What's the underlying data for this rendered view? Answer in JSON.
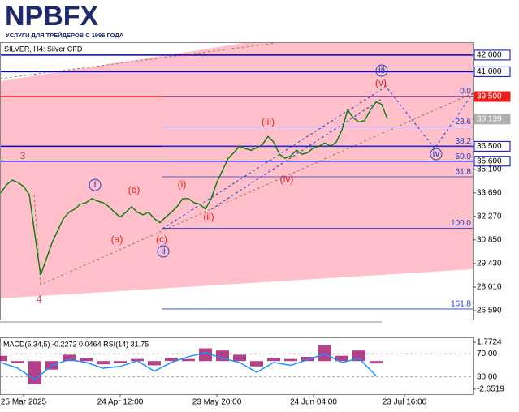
{
  "logo": {
    "name": "NPBFX",
    "tagline": "УСЛУГИ ДЛЯ ТРЕЙДЕРОВ С 1996 ГОДА"
  },
  "chart_data": [
    {
      "type": "line",
      "title": "SILVER, H4:  Silver CFD",
      "color": "#0a7a0a",
      "values": [
        33.69,
        34.17,
        34.46,
        34.32,
        34.08,
        33.59,
        31.16,
        28.73,
        29.7,
        30.67,
        31.4,
        32.13,
        32.52,
        32.71,
        33.01,
        33.1,
        33.35,
        33.2,
        33.1,
        32.86,
        32.52,
        32.23,
        32.52,
        32.86,
        32.52,
        32.37,
        32.52,
        32.13,
        31.89,
        32.23,
        32.52,
        32.86,
        33.35,
        33.35,
        33.1,
        33.01,
        32.71,
        33.35,
        34.32,
        35.05,
        35.78,
        36.12,
        36.51,
        36.36,
        36.26,
        36.41,
        36.6,
        37.09,
        36.75,
        36.02,
        35.78,
        35.92,
        36.26,
        36.02,
        36.12,
        36.41,
        36.51,
        36.7,
        36.51,
        36.75,
        37.48,
        38.69,
        38.21,
        37.96,
        38.06,
        38.69,
        39.18,
        39.03,
        38.14
      ],
      "xlim": [
        0,
        83
      ],
      "ylim": [
        26.05,
        42.73
      ],
      "yticks": [
        {
          "value": 42.0,
          "label": "42.000",
          "box": "#0000cc"
        },
        {
          "value": 41.0,
          "label": "41.000",
          "box": "#0000cc"
        },
        {
          "value": 39.5,
          "label": "39.500",
          "box": "#e8201c"
        },
        {
          "value": 38.139,
          "label": "38.139",
          "box": "#b0b0b0"
        },
        {
          "value": 36.5,
          "label": "36.500",
          "box": "#0000cc"
        },
        {
          "value": 35.6,
          "label": "35.600",
          "box": "#0000cc"
        },
        {
          "value": 35.1,
          "label": "35.100"
        },
        {
          "value": 33.69,
          "label": "33.690"
        },
        {
          "value": 32.27,
          "label": "32.270"
        },
        {
          "value": 30.85,
          "label": "30.850"
        },
        {
          "value": 29.43,
          "label": "29.430"
        },
        {
          "value": 28.01,
          "label": "28.010"
        },
        {
          "value": 26.59,
          "label": "26.590"
        }
      ],
      "levels": [
        {
          "value": 42.0,
          "color": "#0000cc"
        },
        {
          "value": 41.0,
          "color": "#0000cc"
        },
        {
          "value": 39.5,
          "color": "#e8201c"
        },
        {
          "value": 36.5,
          "color": "#0000cc"
        },
        {
          "value": 35.6,
          "color": "#0000cc"
        }
      ],
      "fibonacci": [
        {
          "value": 39.5,
          "label": "0.0"
        },
        {
          "value": 37.67,
          "label": "23.6"
        },
        {
          "value": 36.5,
          "label": "38.2"
        },
        {
          "value": 35.58,
          "label": "50.0"
        },
        {
          "value": 34.66,
          "label": "61.8"
        },
        {
          "value": 31.55,
          "label": "100.0"
        },
        {
          "value": 26.69,
          "label": "161.8"
        }
      ],
      "annotations": [
        {
          "text": "3",
          "color": "#c0504d"
        },
        {
          "text": "4",
          "color": "#c0504d"
        },
        {
          "text": "i",
          "color": "#1c3fc8"
        },
        {
          "text": "(a)",
          "color": "#e8201c"
        },
        {
          "text": "(b)",
          "color": "#e8201c"
        },
        {
          "text": "(c)",
          "color": "#e8201c"
        },
        {
          "text": "ii",
          "color": "#1c3fc8"
        },
        {
          "text": "(i)",
          "color": "#e8201c"
        },
        {
          "text": "(ii)",
          "color": "#e8201c"
        },
        {
          "text": "(iii)",
          "color": "#e8201c"
        },
        {
          "text": "(iv)",
          "color": "#e8201c"
        },
        {
          "text": "iii",
          "color": "#1c3fc8"
        },
        {
          "text": "(v)",
          "color": "#e8201c"
        },
        {
          "text": "iv",
          "color": "#1c3fc8"
        }
      ]
    },
    {
      "type": "macd_rsi",
      "title": "MACD(5,34,5) -0.2272 0.0464 RSI(14) 31.75",
      "x": [
        0,
        3,
        6,
        9,
        12,
        15,
        18,
        21,
        24,
        27,
        30,
        33,
        36,
        39,
        42,
        45,
        48,
        51,
        54,
        57,
        60,
        63,
        66
      ],
      "series": [
        {
          "color": "#a0106a",
          "values": [
            0.5,
            -0.2,
            -2.2,
            -0.8,
            0.6,
            0.3,
            -0.3,
            -0.2,
            0.2,
            -0.4,
            0.3,
            0.2,
            1.2,
            1.0,
            0.6,
            -0.5,
            0.3,
            0.2,
            0.4,
            1.5,
            0.5,
            1.0,
            -0.2272
          ]
        },
        {
          "color": "#1e90ff",
          "axis": "y2",
          "values": [
            55,
            45,
            25,
            50,
            60,
            55,
            45,
            48,
            58,
            40,
            55,
            65,
            72,
            62,
            55,
            38,
            55,
            50,
            60,
            70,
            55,
            62,
            31.75
          ]
        }
      ],
      "xlim": [
        0,
        83
      ],
      "ylim": [
        -3.12,
        2.16
      ],
      "yticks": [
        1.7724,
        {
          "value": -2.6519,
          "label": "-2.6519"
        }
      ],
      "y2lim": [
        0,
        97.1
      ],
      "y2ticks": [
        {
          "value": 70,
          "label": "70.00"
        },
        {
          "value": 30,
          "label": "30.00"
        }
      ],
      "xticks": [
        {
          "value": 4,
          "label": "25 Mar 2025"
        },
        {
          "value": 21,
          "label": "24 Apr 12:00"
        },
        {
          "value": 38,
          "label": "23 May 20:00"
        },
        {
          "value": 55,
          "label": "24 Jun 04:00"
        },
        {
          "value": 71,
          "label": "23 Jul 16:00"
        }
      ]
    }
  ]
}
